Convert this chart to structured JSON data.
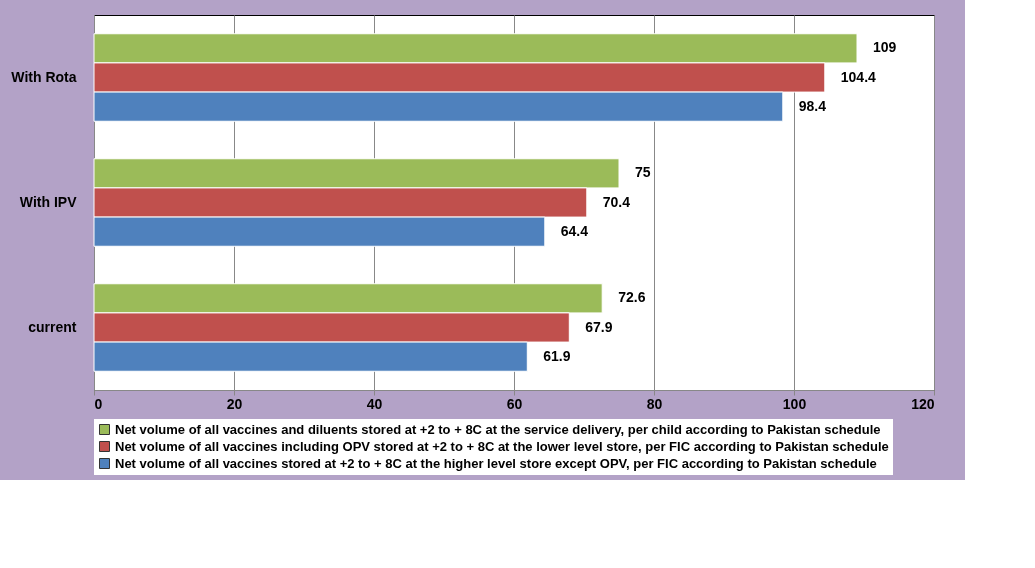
{
  "chart_data": {
    "type": "bar",
    "orientation": "horizontal",
    "categories": [
      "With Rota",
      "With IPV",
      "current"
    ],
    "series": [
      {
        "name": "Net volume of all vaccines and diluents stored at +2 to + 8C at the service delivery, per child according to Pakistan schedule",
        "color": "#9bbb59",
        "values": [
          109,
          75,
          72.6
        ]
      },
      {
        "name": "Net volume of all vaccines including OPV stored at +2 to + 8C at the lower level store, per FIC according to Pakistan schedule",
        "color": "#c0504d",
        "values": [
          104.4,
          70.4,
          67.9
        ]
      },
      {
        "name": "Net volume of all vaccines stored at +2 to + 8C  at the higher level store except OPV, per FIC according to Pakistan schedule",
        "color": "#4f81bd",
        "values": [
          98.4,
          64.4,
          61.9
        ]
      }
    ],
    "xlim": [
      0,
      120
    ],
    "xticks": [
      0,
      20,
      40,
      60,
      80,
      100,
      120
    ],
    "grid": "x",
    "legend": "bottom",
    "data_labels": true
  }
}
